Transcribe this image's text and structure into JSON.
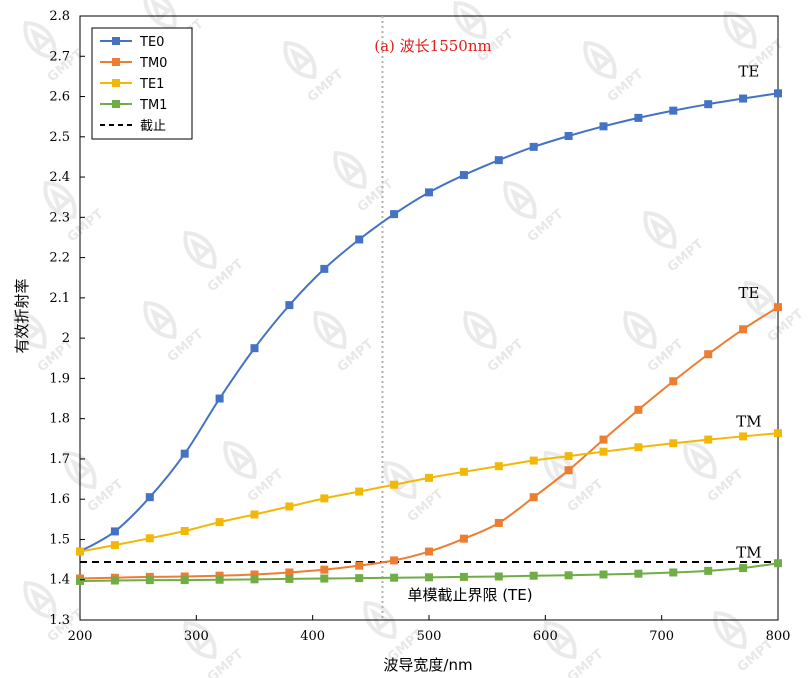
{
  "chart_data": {
    "type": "line",
    "xlabel": "波导宽度/nm",
    "ylabel": "有效折射率",
    "xlim": [
      200,
      800
    ],
    "ylim": [
      1.3,
      2.8
    ],
    "x_ticks": [
      "200",
      "300",
      "400",
      "500",
      "600",
      "700",
      "800"
    ],
    "y_ticks": [
      "1.3",
      "1.4",
      "1.5",
      "1.6",
      "1.7",
      "1.8",
      "1.9",
      "2",
      "2.1",
      "2.2",
      "2.3",
      "2.4",
      "2.5",
      "2.6",
      "2.7",
      "2.8"
    ],
    "grid": false,
    "legend_position": "top-left",
    "x": [
      200,
      230,
      260,
      290,
      320,
      350,
      380,
      410,
      440,
      470,
      500,
      530,
      560,
      590,
      620,
      650,
      680,
      710,
      740,
      770,
      800
    ],
    "series": [
      {
        "name": "TE0",
        "color": "#4472c4",
        "marker": "square",
        "values": [
          1.47,
          1.52,
          1.605,
          1.713,
          1.85,
          1.975,
          2.082,
          2.172,
          2.245,
          2.308,
          2.362,
          2.405,
          2.442,
          2.475,
          2.502,
          2.526,
          2.547,
          2.565,
          2.581,
          2.595,
          2.608
        ]
      },
      {
        "name": "TM0",
        "color": "#ed7d31",
        "marker": "square",
        "values": [
          1.403,
          1.405,
          1.407,
          1.408,
          1.41,
          1.413,
          1.418,
          1.425,
          1.435,
          1.448,
          1.47,
          1.502,
          1.541,
          1.605,
          1.672,
          1.748,
          1.822,
          1.893,
          1.96,
          2.022,
          2.077
        ]
      },
      {
        "name": "TE1",
        "color": "#f2b807",
        "marker": "square",
        "values": [
          1.47,
          1.486,
          1.503,
          1.521,
          1.543,
          1.562,
          1.582,
          1.602,
          1.619,
          1.636,
          1.653,
          1.668,
          1.682,
          1.696,
          1.707,
          1.718,
          1.729,
          1.739,
          1.748,
          1.756,
          1.764
        ]
      },
      {
        "name": "TM1",
        "color": "#70ad47",
        "marker": "square",
        "values": [
          1.397,
          1.398,
          1.399,
          1.399,
          1.4,
          1.401,
          1.402,
          1.403,
          1.404,
          1.405,
          1.406,
          1.407,
          1.408,
          1.41,
          1.411,
          1.413,
          1.415,
          1.418,
          1.422,
          1.429,
          1.441
        ]
      }
    ],
    "cutoff": {
      "name": "截止",
      "y": 1.444,
      "color": "#000000"
    },
    "single_mode_boundary": {
      "x": 460,
      "label": "单模截止界限 (TE)"
    },
    "title": "(a) 波长1550nm",
    "curve_labels": [
      {
        "text": "TE",
        "x": 775,
        "y": 2.65
      },
      {
        "text": "TE",
        "x": 775,
        "y": 2.1
      },
      {
        "text": "TM",
        "x": 775,
        "y": 1.78
      },
      {
        "text": "TM",
        "x": 775,
        "y": 1.455
      }
    ]
  },
  "watermark": "GMPT"
}
